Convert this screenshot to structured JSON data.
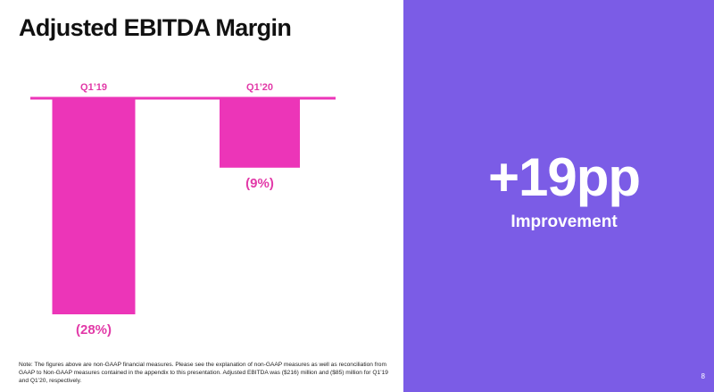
{
  "slide": {
    "title": "Adjusted EBITDA Margin",
    "note": "Note:  The figures above are non-GAAP financial measures. Please see the explanation of non-GAAP measures as well as reconciliation from GAAP to Non-GAAP measures contained in the appendix to this presentation. Adjusted EBITDA was ($216) million and ($85) million for Q1’19 and Q1’20, respectively.",
    "page_number": "8"
  },
  "highlight": {
    "value": "+19pp",
    "label": "Improvement"
  },
  "colors": {
    "bar": "#ec35b8",
    "axis": "#ec35b8",
    "label": "#e23aa8",
    "panel": "#7b5ce6",
    "title": "#111111"
  },
  "chart_data": {
    "type": "bar",
    "title": "Adjusted EBITDA Margin",
    "categories": [
      "Q1’19",
      "Q1’20"
    ],
    "values": [
      -28,
      -9
    ],
    "value_labels": [
      "(28%)",
      "(9%)"
    ],
    "unit": "%",
    "ylim": [
      -28,
      0
    ],
    "xlabel": "",
    "ylabel": "",
    "grid": false,
    "legend": "none"
  }
}
